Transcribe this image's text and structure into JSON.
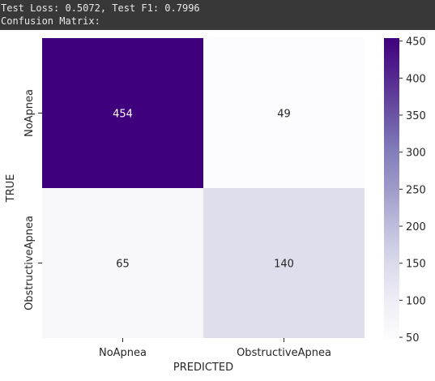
{
  "console": {
    "lines": [
      "Test Loss: 0.5072, Test F1: 0.7996",
      "Confusion Matrix:"
    ]
  },
  "chart_data": {
    "type": "heatmap",
    "title": "",
    "xlabel": "PREDICTED",
    "ylabel": "TRUE",
    "x_categories": [
      "NoApnea",
      "ObstructiveApnea"
    ],
    "y_categories": [
      "NoApnea",
      "ObstructiveApnea"
    ],
    "values": [
      [
        454,
        49
      ],
      [
        65,
        140
      ]
    ],
    "colormap": "Purples",
    "colorbar": {
      "vmin": 49,
      "vmax": 454,
      "ticks": [
        50,
        100,
        150,
        200,
        250,
        300,
        350,
        400,
        450
      ]
    },
    "colors": {
      "low": "#fcfbfd",
      "high": "#3f007d",
      "text_light": "#ffffff",
      "text_dark": "#262626"
    }
  }
}
